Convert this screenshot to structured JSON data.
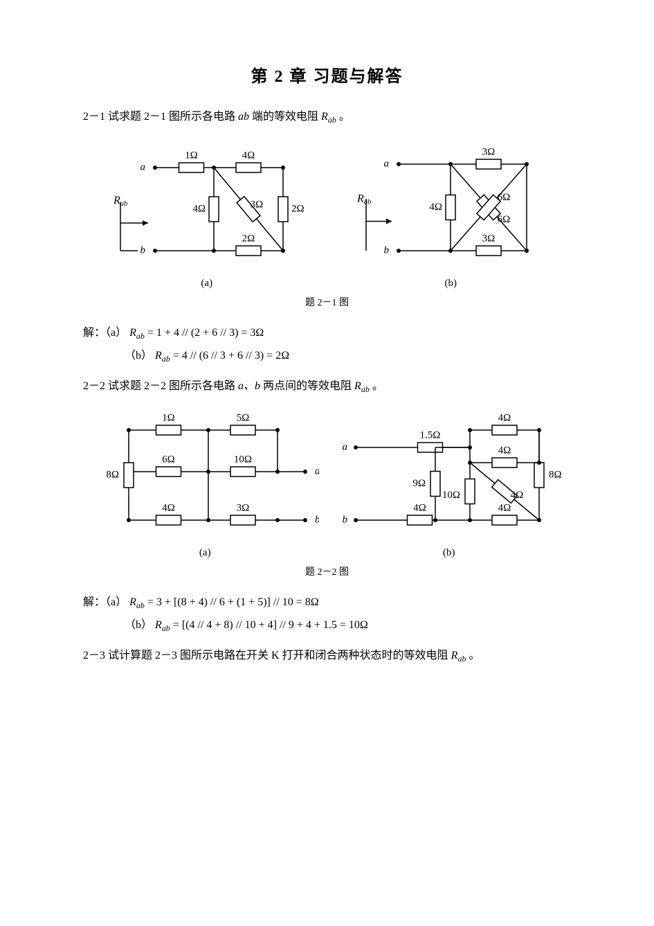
{
  "title": "第 2 章  习题与解答",
  "problems": {
    "p1": {
      "text_prefix": "2－1 试求题 2－1 图所示各电路 ",
      "text_var": "ab",
      "text_suffix": " 端的等效电阻 ",
      "text_rab": "R",
      "text_rab_sub": "ab",
      "text_end": " 。",
      "fig_cap_a": "(a)",
      "fig_cap_b": "(b)",
      "fig_caption": "题 2－1 图",
      "sol_label": "解：（a）",
      "sol_a": "R_{ab} = 1 + 4 // (2 + 6 // 3) = 3Ω",
      "sol_b_label": "（b）",
      "sol_b": "R_{ab} = 4 // (6 // 3 + 6 // 3) = 2Ω",
      "circuit_a": {
        "a_label": "a",
        "b_label": "b",
        "Rab_label": "R",
        "r1": "1Ω",
        "r4": "4Ω",
        "rv4": "4Ω",
        "r3": "3Ω",
        "r2v": "2Ω",
        "r2h": "2Ω"
      },
      "circuit_b": {
        "a_label": "a",
        "b_label": "b",
        "Rab_label": "R",
        "r3t": "3Ω",
        "r3b": "3Ω",
        "r4": "4Ω",
        "r6a": "6Ω",
        "r6b": "6Ω"
      }
    },
    "p2": {
      "text_prefix": "2－2 试求题 2－2 图所示各电路 ",
      "text_ab": "a、b",
      "text_suffix": " 两点间的等效电阻 ",
      "text_rab": "R",
      "text_rab_sub": "ab",
      "text_end": " 。",
      "fig_cap_a": "(a)",
      "fig_cap_b": "(b)",
      "fig_caption": "题 2－2 图",
      "sol_label": "解：（a）",
      "sol_a": "R_{ab} = 3 + [(8 + 4) // 6 + (1 + 5)] // 10 = 8Ω",
      "sol_b_label": "（b）",
      "sol_b": "R_{ab} = [(4 // 4 + 8) // 10 + 4] // 9 + 4 + 1.5 = 10Ω",
      "circuit_a": {
        "a_label": "a",
        "b_label": "b",
        "r1": "1Ω",
        "r5": "5Ω",
        "r6": "6Ω",
        "r10": "10Ω",
        "r8": "8Ω",
        "r4": "4Ω",
        "r3": "3Ω"
      },
      "circuit_b": {
        "a_label": "a",
        "b_label": "b",
        "r15": "1.5Ω",
        "r4t": "4Ω",
        "r4m": "4Ω",
        "r4b": "4Ω",
        "r4bl": "4Ω",
        "r9": "9Ω",
        "r10": "10Ω",
        "r8": "8Ω"
      }
    },
    "p3": {
      "text": "2－3 试计算题 2－3 图所示电路在开关 K 打开和闭合两种状态时的等效电阻 ",
      "text_rab": "R",
      "text_rab_sub": "ab",
      "text_end": " 。"
    }
  },
  "style": {
    "stroke": "#000000",
    "stroke_width": 1.5,
    "node_radius": 3,
    "font_size": 15,
    "font_family": "Times New Roman, SimSun, serif"
  }
}
